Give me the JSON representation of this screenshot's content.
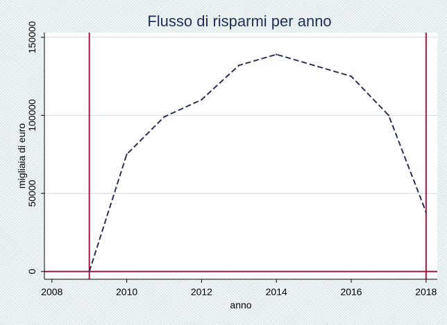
{
  "chart_data": {
    "type": "line",
    "title": "Flusso di risparmi per anno",
    "xlabel": "anno",
    "ylabel": "migliaia di euro",
    "xlim": [
      2007.8,
      2018.3
    ],
    "ylim": [
      -5000,
      153000
    ],
    "xticks": [
      2008,
      2010,
      2012,
      2014,
      2016,
      2018
    ],
    "yticks": [
      0,
      50000,
      100000,
      150000
    ],
    "grid": true,
    "series": [
      {
        "style": "dashed",
        "color": "#2b2f55",
        "x": [
          2009,
          2010,
          2011,
          2012,
          2013,
          2014,
          2015,
          2016,
          2017,
          2018
        ],
        "y": [
          0,
          75000,
          99000,
          110000,
          132000,
          139000,
          132000,
          125000,
          100000,
          38000
        ]
      }
    ],
    "reference_lines": {
      "color": "#b0123e",
      "vertical_x": [
        2009,
        2018
      ],
      "horizontal_y": [
        0
      ]
    }
  }
}
